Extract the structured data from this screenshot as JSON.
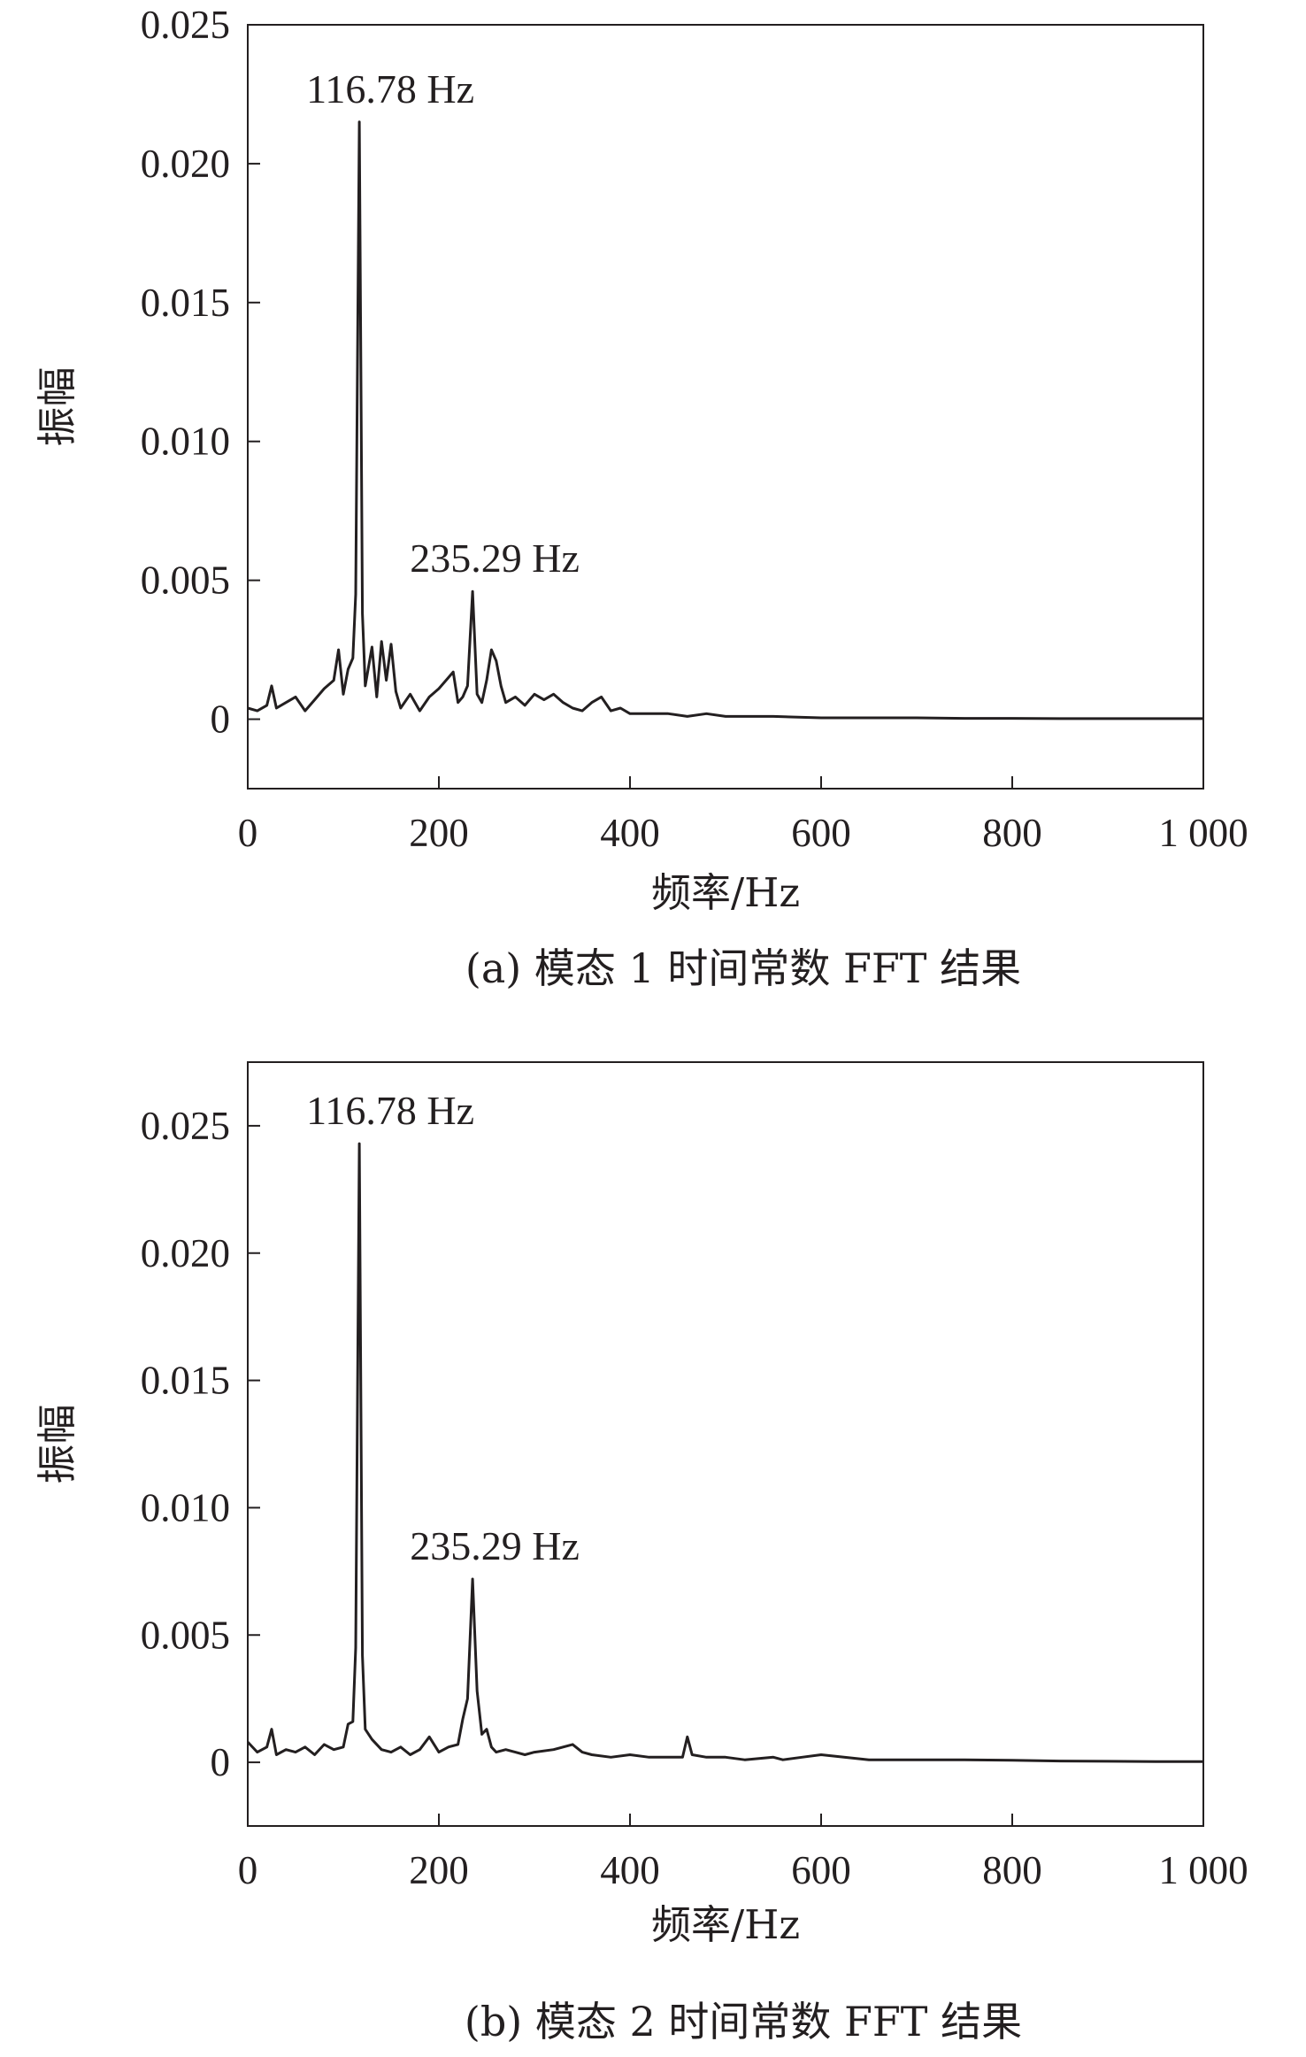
{
  "chart_data": [
    {
      "type": "line",
      "caption": "(a) 模态 1 时间常数 FFT 结果",
      "xlabel": "频率/Hz",
      "ylabel": "振幅",
      "xlim": [
        0,
        1000
      ],
      "ylim": [
        -0.0025,
        0.025
      ],
      "x_ticks": [
        "0",
        "200",
        "400",
        "600",
        "800",
        "1 000"
      ],
      "x_tick_values": [
        0,
        200,
        400,
        600,
        800,
        1000
      ],
      "y_ticks": [
        "0",
        "0.005",
        "0.010",
        "0.015",
        "0.020",
        "0.025"
      ],
      "y_tick_values": [
        0,
        0.005,
        0.01,
        0.015,
        0.02,
        0.025
      ],
      "annotations": [
        {
          "text": "116.78 Hz",
          "x": 116.78,
          "y": 0.0215
        },
        {
          "text": "235.29 Hz",
          "x": 235.29,
          "y": 0.0046
        }
      ],
      "series": [
        {
          "x": [
            0,
            10,
            20,
            25,
            30,
            40,
            50,
            60,
            70,
            80,
            90,
            95,
            100,
            105,
            110,
            113,
            116.78,
            120,
            123,
            130,
            135,
            140,
            145,
            150,
            155,
            160,
            170,
            180,
            190,
            200,
            210,
            215,
            220,
            225,
            230,
            235.29,
            240,
            245,
            250,
            255,
            260,
            265,
            270,
            280,
            290,
            300,
            310,
            320,
            330,
            340,
            350,
            360,
            370,
            380,
            390,
            400,
            420,
            440,
            460,
            480,
            500,
            550,
            600,
            650,
            700,
            750,
            800,
            850,
            900,
            950,
            1000
          ],
          "y": [
            0.0004,
            0.0003,
            0.0005,
            0.0012,
            0.0004,
            0.0006,
            0.0008,
            0.0003,
            0.0007,
            0.0011,
            0.0014,
            0.0025,
            0.0009,
            0.0018,
            0.0022,
            0.0045,
            0.0215,
            0.0038,
            0.0012,
            0.0026,
            0.0008,
            0.0028,
            0.0014,
            0.0027,
            0.001,
            0.0004,
            0.0009,
            0.0003,
            0.0008,
            0.0011,
            0.0015,
            0.0017,
            0.0006,
            0.0008,
            0.0012,
            0.0046,
            0.0009,
            0.0006,
            0.0014,
            0.0025,
            0.0021,
            0.0012,
            0.0006,
            0.0008,
            0.0005,
            0.0009,
            0.0007,
            0.0009,
            0.0006,
            0.0004,
            0.0003,
            0.0006,
            0.0008,
            0.0003,
            0.0004,
            0.0002,
            0.0002,
            0.0002,
            0.0001,
            0.0002,
            0.0001,
            0.0001,
            5e-05,
            5e-05,
            5e-05,
            3e-05,
            3e-05,
            2e-05,
            2e-05,
            2e-05,
            2e-05
          ]
        }
      ]
    },
    {
      "type": "line",
      "caption": "(b) 模态 2 时间常数 FFT 结果",
      "xlabel": "频率/Hz",
      "ylabel": "振幅",
      "xlim": [
        0,
        1000
      ],
      "ylim": [
        -0.0025,
        0.0275
      ],
      "x_ticks": [
        "0",
        "200",
        "400",
        "600",
        "800",
        "1 000"
      ],
      "x_tick_values": [
        0,
        200,
        400,
        600,
        800,
        1000
      ],
      "y_ticks": [
        "0",
        "0.005",
        "0.010",
        "0.015",
        "0.020",
        "0.025"
      ],
      "y_tick_values": [
        0,
        0.005,
        0.01,
        0.015,
        0.02,
        0.025
      ],
      "annotations": [
        {
          "text": "116.78 Hz",
          "x": 116.78,
          "y": 0.0243
        },
        {
          "text": "235.29 Hz",
          "x": 235.29,
          "y": 0.0072
        }
      ],
      "series": [
        {
          "x": [
            0,
            10,
            20,
            25,
            30,
            40,
            50,
            60,
            70,
            80,
            90,
            100,
            105,
            110,
            113,
            116.78,
            120,
            123,
            130,
            140,
            150,
            160,
            170,
            180,
            190,
            200,
            210,
            220,
            225,
            230,
            235.29,
            240,
            245,
            250,
            255,
            260,
            270,
            280,
            290,
            300,
            320,
            340,
            350,
            360,
            380,
            400,
            420,
            440,
            455,
            460,
            465,
            480,
            500,
            520,
            550,
            560,
            580,
            600,
            650,
            700,
            750,
            800,
            850,
            900,
            950,
            1000
          ],
          "y": [
            0.0008,
            0.0004,
            0.0006,
            0.0013,
            0.0003,
            0.0005,
            0.0004,
            0.0006,
            0.0003,
            0.0007,
            0.0005,
            0.0006,
            0.0015,
            0.0016,
            0.0045,
            0.0243,
            0.0042,
            0.0013,
            0.0009,
            0.0005,
            0.0004,
            0.0006,
            0.0003,
            0.0005,
            0.001,
            0.0004,
            0.0006,
            0.0007,
            0.0017,
            0.0025,
            0.0072,
            0.0028,
            0.0011,
            0.0013,
            0.0006,
            0.0004,
            0.0005,
            0.0004,
            0.0003,
            0.0004,
            0.0005,
            0.0007,
            0.0004,
            0.0003,
            0.0002,
            0.0003,
            0.0002,
            0.0002,
            0.0002,
            0.001,
            0.0003,
            0.0002,
            0.0002,
            0.0001,
            0.0002,
            0.0001,
            0.0002,
            0.0003,
            0.0001,
            0.0001,
            0.0001,
            8e-05,
            5e-05,
            4e-05,
            3e-05,
            3e-05
          ]
        }
      ]
    }
  ]
}
